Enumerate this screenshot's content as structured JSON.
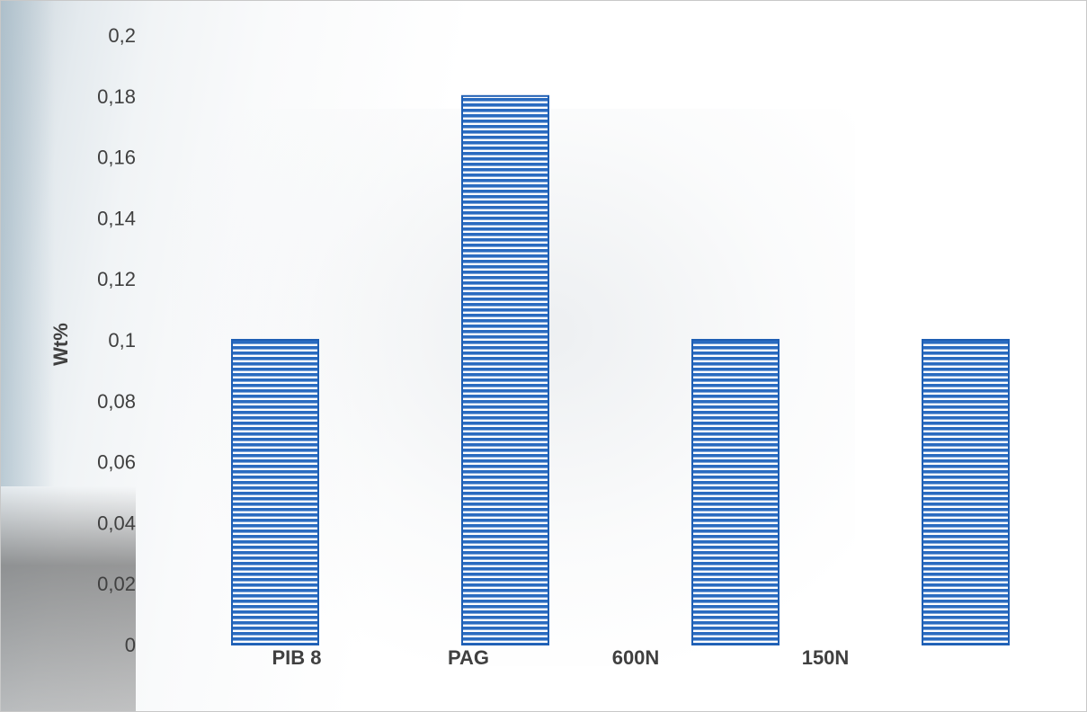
{
  "chart_data": {
    "type": "bar",
    "title": "",
    "xlabel": "",
    "ylabel": "Wt%",
    "categories": [
      "PIB 8",
      "PAG",
      "600N",
      "150N"
    ],
    "values": [
      0.1,
      0.18,
      0.1,
      0.1
    ],
    "ylim": [
      0,
      0.2
    ],
    "yticks": [
      "0",
      "0,02",
      "0,04",
      "0,06",
      "0,08",
      "0,1",
      "0,12",
      "0,14",
      "0,16",
      "0,18",
      "0,2"
    ],
    "grid": false,
    "legend": "none",
    "bar_color": "#1f5fb4",
    "bar_pattern": "horizontal-stripes"
  }
}
